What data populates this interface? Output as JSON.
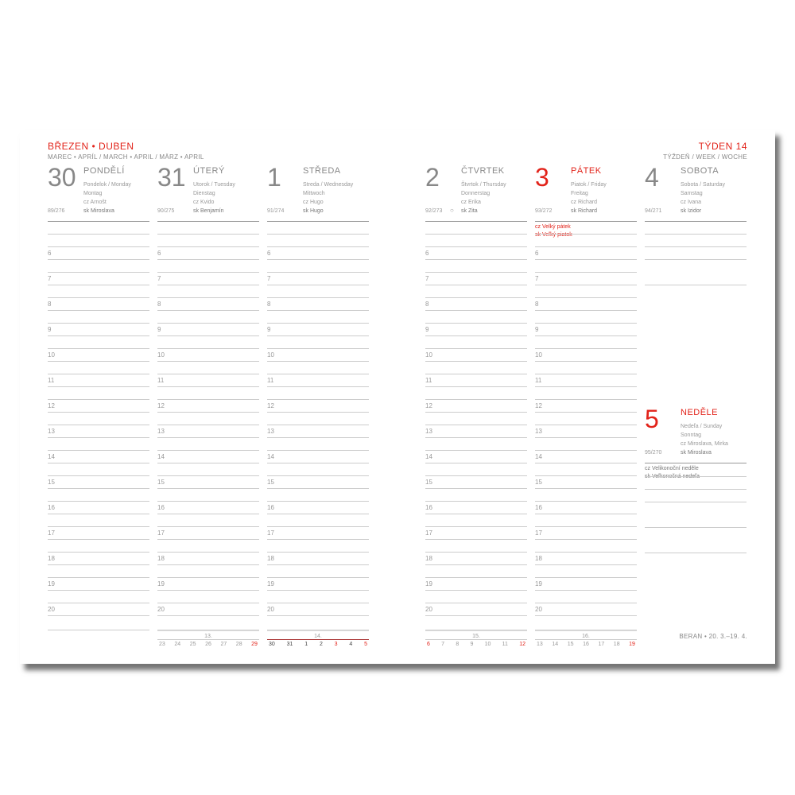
{
  "header": {
    "month": "BŘEZEN • DUBEN",
    "month_sub": "MAREC • APRÍL / MARCH • APRIL / MÄRZ • APRIL",
    "week": "TÝDEN 14",
    "week_sub": "TÝŽDEŇ / WEEK / WOCHE"
  },
  "days": [
    {
      "num": "30",
      "name": "PONDĚLÍ",
      "sub1": "Pondelok / Monday",
      "sub2": "Montag",
      "cz": "cz Arnošt",
      "sk": "sk Miroslava",
      "ord": "89/276",
      "red": false
    },
    {
      "num": "31",
      "name": "ÚTERÝ",
      "sub1": "Utorok / Tuesday",
      "sub2": "Dienstag",
      "cz": "cz Kvido",
      "sk": "sk Benjamín",
      "ord": "90/275",
      "red": false
    },
    {
      "num": "1",
      "name": "STŘEDA",
      "sub1": "Streda / Wednesday",
      "sub2": "Mittwoch",
      "cz": "cz Hugo",
      "sk": "sk Hugo",
      "ord": "91/274",
      "red": false
    },
    {
      "num": "2",
      "name": "ČTVRTEK",
      "sub1": "Štvrtok / Thursday",
      "sub2": "Donnerstag",
      "cz": "cz Erika",
      "sk": "sk Zita",
      "ord": "92/273",
      "moon": "○",
      "red": false
    },
    {
      "num": "3",
      "name": "PÁTEK",
      "sub1": "Piatok / Friday",
      "sub2": "Freitag",
      "cz": "cz Richard",
      "sk": "sk Richard",
      "ord": "93/272",
      "red": true,
      "holiday": [
        "cz Velký pátek",
        "sk Veľký piatok"
      ]
    },
    {
      "num": "4",
      "name": "SOBOTA",
      "sub1": "Sobota / Saturday",
      "sub2": "Samstag",
      "cz": "cz Ivana",
      "sk": "sk Izidor",
      "ord": "94/271",
      "red": false
    },
    {
      "num": "5",
      "name": "NEDĚLE",
      "sub1": "Nedeľa / Sunday",
      "sub2": "Sonntag",
      "cz": "cz Miroslava, Mirka",
      "sk": "sk Miroslava",
      "ord": "95/270",
      "red": true,
      "holiday": [
        "cz Velikonoční neděle",
        "sk Veľkonočná nedeľa"
      ]
    }
  ],
  "hours": [
    "6",
    "7",
    "8",
    "9",
    "10",
    "11",
    "12",
    "13",
    "14",
    "15",
    "16",
    "17",
    "18",
    "19",
    "20"
  ],
  "mini_calendars": [
    {
      "week": "13.",
      "days": [
        "23",
        "24",
        "25",
        "26",
        "27",
        "28",
        "29"
      ],
      "red": [
        6
      ]
    },
    {
      "week": "14.",
      "days": [
        "30",
        "31",
        "1",
        "2",
        "3",
        "4",
        "5"
      ],
      "red": [
        4,
        6
      ],
      "current": true
    },
    {
      "week": "15.",
      "days": [
        "6",
        "7",
        "8",
        "9",
        "10",
        "11",
        "12"
      ],
      "red": [
        0,
        6
      ]
    },
    {
      "week": "16.",
      "days": [
        "13",
        "14",
        "15",
        "16",
        "17",
        "18",
        "19"
      ],
      "red": [
        6
      ]
    }
  ],
  "footer": "BERAN • 20. 3.–19. 4.",
  "colors": {
    "accent": "#e2231a",
    "text": "#777777"
  }
}
